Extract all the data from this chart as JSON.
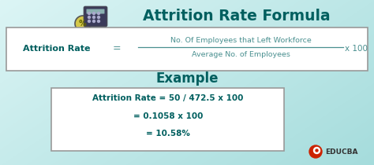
{
  "title": "Attrition Rate Formula",
  "title_color": "#005f5f",
  "bg_color_tl": "#d8f4f4",
  "bg_color_br": "#a8e0e0",
  "formula_label": "Attrition Rate",
  "formula_eq": "=",
  "formula_numerator": "No. Of Employees that Left Workforce",
  "formula_denominator": "Average No. of Employees",
  "formula_x100": "x 100",
  "example_title": "Example",
  "example_line1": "Attrition Rate = 50 / 472.5 x 100",
  "example_line2": "= 0.1058 x 100",
  "example_line3": "= 10.58%",
  "box_bg": "#ffffff",
  "box_border": "#999999",
  "text_teal": "#005f5f",
  "text_mid": "#4a9090",
  "educba_text": "EDUCBA",
  "calc_dark": "#3a3a5a",
  "calc_mid": "#555575",
  "coin_yellow": "#d4c84a",
  "coin_dark": "#8a7a10"
}
